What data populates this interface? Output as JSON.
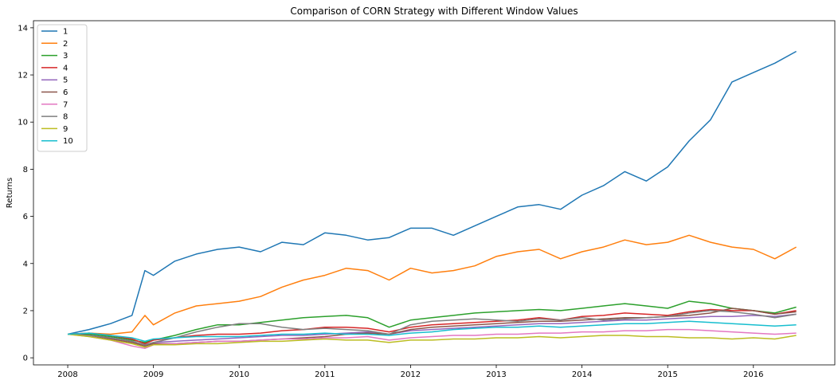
{
  "chart_data": {
    "type": "line",
    "title": "Comparison of CORN Strategy with Different Window Values",
    "xlabel": "",
    "ylabel": "Returns",
    "x_ticks": [
      "2008",
      "2009",
      "2010",
      "2011",
      "2012",
      "2013",
      "2014",
      "2015",
      "2016"
    ],
    "y_ticks": [
      "0",
      "2",
      "4",
      "6",
      "8",
      "10",
      "12",
      "14"
    ],
    "xlim": [
      2007.6,
      2016.95
    ],
    "ylim": [
      -0.3,
      14.3
    ],
    "grid": false,
    "legend_position": "top-left",
    "x": [
      2008.0,
      2008.25,
      2008.5,
      2008.75,
      2008.9,
      2009.0,
      2009.25,
      2009.5,
      2009.75,
      2010.0,
      2010.25,
      2010.5,
      2010.75,
      2011.0,
      2011.25,
      2011.5,
      2011.75,
      2012.0,
      2012.25,
      2012.5,
      2012.75,
      2013.0,
      2013.25,
      2013.5,
      2013.75,
      2014.0,
      2014.25,
      2014.5,
      2014.75,
      2015.0,
      2015.25,
      2015.5,
      2015.75,
      2016.0,
      2016.25,
      2016.5
    ],
    "series": [
      {
        "name": "1",
        "color": "#1f77b4",
        "values": [
          1.0,
          1.2,
          1.45,
          1.8,
          3.7,
          3.5,
          4.1,
          4.4,
          4.6,
          4.7,
          4.5,
          4.9,
          4.8,
          5.3,
          5.2,
          5.0,
          5.1,
          5.5,
          5.5,
          5.2,
          5.6,
          6.0,
          6.4,
          6.5,
          6.3,
          6.9,
          7.3,
          7.9,
          7.5,
          8.1,
          9.2,
          10.1,
          11.7,
          12.1,
          12.5,
          13.0
        ]
      },
      {
        "name": "2",
        "color": "#ff7f0e",
        "values": [
          1.0,
          1.05,
          1.0,
          1.1,
          1.8,
          1.4,
          1.9,
          2.2,
          2.3,
          2.4,
          2.6,
          3.0,
          3.3,
          3.5,
          3.8,
          3.7,
          3.3,
          3.8,
          3.6,
          3.7,
          3.9,
          4.3,
          4.5,
          4.6,
          4.2,
          4.5,
          4.7,
          5.0,
          4.8,
          4.9,
          5.2,
          4.9,
          4.7,
          4.6,
          4.2,
          4.7
        ]
      },
      {
        "name": "3",
        "color": "#2ca02c",
        "values": [
          1.0,
          1.0,
          0.9,
          0.75,
          0.65,
          0.75,
          0.95,
          1.2,
          1.4,
          1.4,
          1.5,
          1.6,
          1.7,
          1.75,
          1.8,
          1.7,
          1.3,
          1.6,
          1.7,
          1.8,
          1.9,
          1.95,
          2.0,
          2.05,
          2.0,
          2.1,
          2.2,
          2.3,
          2.2,
          2.1,
          2.4,
          2.3,
          2.1,
          2.0,
          1.9,
          2.15
        ]
      },
      {
        "name": "4",
        "color": "#d62728",
        "values": [
          1.0,
          1.05,
          0.95,
          0.8,
          0.6,
          0.75,
          0.85,
          0.95,
          1.0,
          1.0,
          1.05,
          1.15,
          1.2,
          1.3,
          1.3,
          1.25,
          1.1,
          1.3,
          1.4,
          1.45,
          1.5,
          1.55,
          1.6,
          1.7,
          1.6,
          1.75,
          1.8,
          1.9,
          1.85,
          1.8,
          1.95,
          2.05,
          2.0,
          2.0,
          1.85,
          2.0
        ]
      },
      {
        "name": "5",
        "color": "#9467bd",
        "values": [
          1.0,
          0.95,
          0.85,
          0.7,
          0.55,
          0.65,
          0.7,
          0.75,
          0.8,
          0.85,
          0.9,
          0.95,
          0.95,
          1.0,
          1.05,
          1.1,
          1.0,
          1.15,
          1.2,
          1.25,
          1.3,
          1.35,
          1.4,
          1.45,
          1.45,
          1.5,
          1.55,
          1.6,
          1.6,
          1.65,
          1.7,
          1.75,
          1.75,
          1.8,
          1.75,
          1.85
        ]
      },
      {
        "name": "6",
        "color": "#8c564b",
        "values": [
          1.0,
          0.95,
          0.8,
          0.65,
          0.5,
          0.6,
          0.6,
          0.65,
          0.7,
          0.7,
          0.75,
          0.8,
          0.85,
          0.9,
          1.0,
          1.05,
          1.0,
          1.2,
          1.3,
          1.35,
          1.4,
          1.45,
          1.5,
          1.55,
          1.55,
          1.6,
          1.65,
          1.7,
          1.7,
          1.75,
          1.8,
          1.9,
          2.1,
          2.0,
          1.85,
          1.95
        ]
      },
      {
        "name": "7",
        "color": "#e377c2",
        "values": [
          1.0,
          0.9,
          0.75,
          0.5,
          0.4,
          0.55,
          0.6,
          0.65,
          0.7,
          0.7,
          0.75,
          0.8,
          0.8,
          0.85,
          0.85,
          0.9,
          0.75,
          0.85,
          0.9,
          0.95,
          0.95,
          1.0,
          1.0,
          1.05,
          1.05,
          1.1,
          1.1,
          1.15,
          1.15,
          1.2,
          1.2,
          1.15,
          1.1,
          1.05,
          1.0,
          1.05
        ]
      },
      {
        "name": "8",
        "color": "#7f7f7f",
        "values": [
          1.0,
          0.95,
          0.85,
          0.7,
          0.55,
          0.65,
          0.85,
          1.1,
          1.3,
          1.45,
          1.45,
          1.3,
          1.2,
          1.25,
          1.2,
          1.15,
          1.0,
          1.4,
          1.55,
          1.6,
          1.65,
          1.6,
          1.55,
          1.65,
          1.6,
          1.7,
          1.6,
          1.65,
          1.7,
          1.75,
          1.9,
          2.0,
          1.95,
          1.85,
          1.7,
          1.85
        ]
      },
      {
        "name": "9",
        "color": "#bcbd22",
        "values": [
          1.0,
          0.9,
          0.75,
          0.6,
          0.45,
          0.55,
          0.55,
          0.6,
          0.6,
          0.65,
          0.7,
          0.7,
          0.75,
          0.8,
          0.75,
          0.75,
          0.65,
          0.75,
          0.75,
          0.8,
          0.8,
          0.85,
          0.85,
          0.9,
          0.85,
          0.9,
          0.95,
          0.95,
          0.9,
          0.9,
          0.85,
          0.85,
          0.8,
          0.85,
          0.8,
          0.95
        ]
      },
      {
        "name": "10",
        "color": "#17becf",
        "values": [
          1.0,
          1.05,
          0.95,
          0.85,
          0.7,
          0.8,
          0.85,
          0.9,
          0.9,
          0.9,
          0.95,
          1.0,
          1.0,
          1.05,
          1.0,
          1.0,
          0.95,
          1.05,
          1.1,
          1.2,
          1.25,
          1.3,
          1.3,
          1.35,
          1.3,
          1.35,
          1.4,
          1.45,
          1.45,
          1.5,
          1.55,
          1.5,
          1.45,
          1.4,
          1.35,
          1.4
        ]
      }
    ]
  }
}
